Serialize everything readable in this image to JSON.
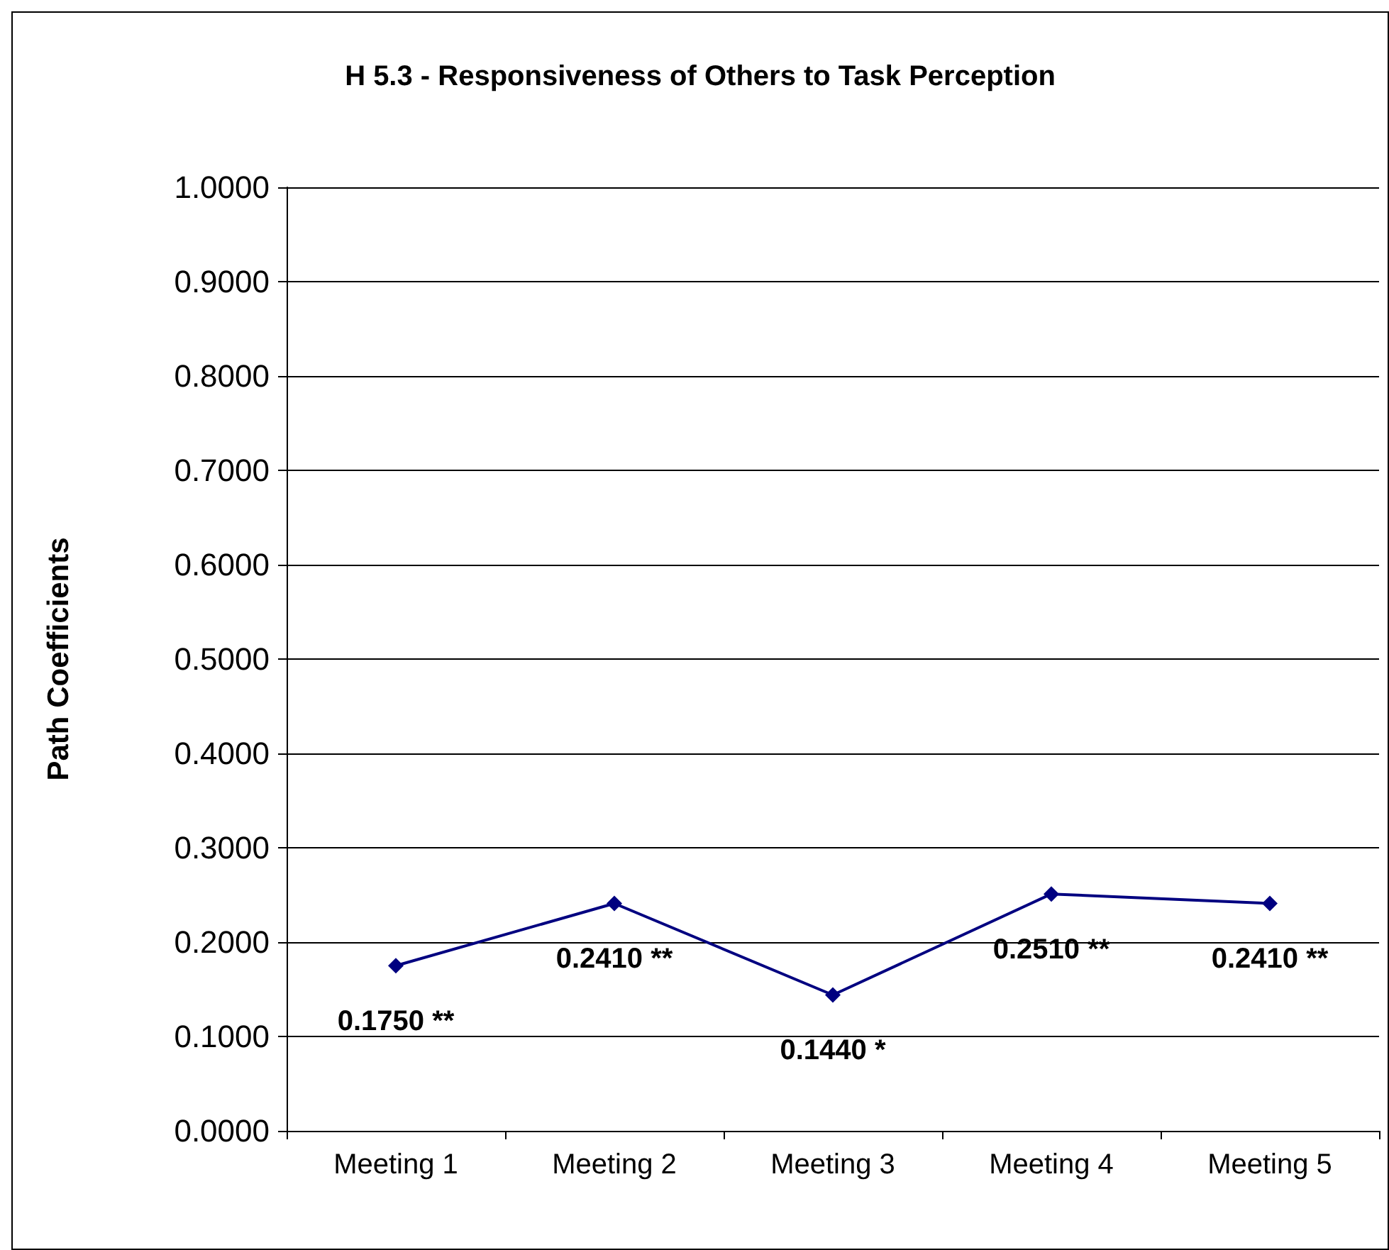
{
  "chart_data": {
    "type": "line",
    "title": "H 5.3 - Responsiveness of Others to Task Perception",
    "ylabel": "Path Coefficients",
    "categories": [
      "Meeting 1",
      "Meeting 2",
      "Meeting 3",
      "Meeting 4",
      "Meeting 5"
    ],
    "series": [
      {
        "color": "#000080",
        "values": [
          0.175,
          0.241,
          0.144,
          0.251,
          0.241
        ],
        "value_labels": [
          "0.1750 **",
          "0.2410 **",
          "0.1440 *",
          "0.2510 **",
          "0.2410 **"
        ]
      }
    ],
    "ylim": [
      0,
      1
    ],
    "yticks": [
      {
        "value": 0,
        "label": "0.0000"
      },
      {
        "value": 0.1,
        "label": "0.1000"
      },
      {
        "value": 0.2,
        "label": "0.2000"
      },
      {
        "value": 0.3,
        "label": "0.3000"
      },
      {
        "value": 0.4,
        "label": "0.4000"
      },
      {
        "value": 0.5,
        "label": "0.5000"
      },
      {
        "value": 0.6,
        "label": "0.6000"
      },
      {
        "value": 0.7,
        "label": "0.7000"
      },
      {
        "value": 0.8,
        "label": "0.8000"
      },
      {
        "value": 0.9,
        "label": "0.9000"
      },
      {
        "value": 1,
        "label": "1.0000"
      }
    ],
    "grid": "y",
    "marker": "diamond",
    "line_style": "solid"
  }
}
